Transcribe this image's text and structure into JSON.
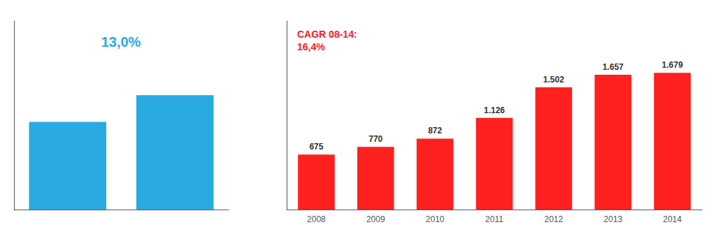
{
  "chart_data": [
    {
      "type": "bar",
      "categories": [
        null,
        null
      ],
      "values": [
        230,
        300
      ],
      "color": "#29ABE2",
      "ylim": [
        0,
        495
      ],
      "grid": false,
      "tick_labels": false,
      "annotations": [
        "13,0%"
      ]
    },
    {
      "type": "bar",
      "categories": [
        "2008",
        "2009",
        "2010",
        "2011",
        "2012",
        "2013",
        "2014"
      ],
      "values": [
        675,
        770,
        872,
        1126,
        1502,
        1657,
        1679
      ],
      "value_labels": [
        "675",
        "770",
        "872",
        "1.126",
        "1.502",
        "1.657",
        "1.679"
      ],
      "color": "#FF2020",
      "data_labels": true,
      "ylim": [
        0,
        2317.02
      ],
      "grid": false,
      "tick_labels": "x",
      "annotations": [
        "CAGR 08-14:\n16,4%"
      ]
    }
  ]
}
